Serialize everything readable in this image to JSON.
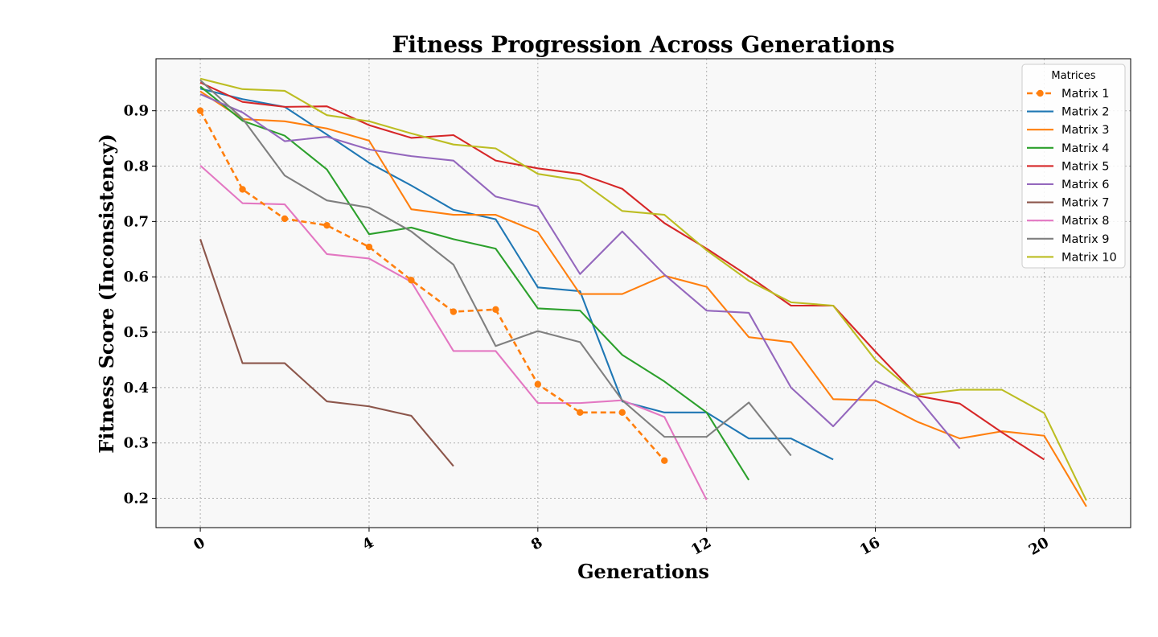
{
  "chart_data": {
    "type": "line",
    "title": "Fitness Progression Across Generations",
    "xlabel": "Generations",
    "ylabel": "Fitness Score (Inconsistency)",
    "xlim": [
      -1.05,
      22.05
    ],
    "ylim": [
      0.147,
      0.994
    ],
    "xticks": [
      0,
      4,
      8,
      12,
      16,
      20
    ],
    "yticks": [
      0.2,
      0.3,
      0.4,
      0.5,
      0.6,
      0.7,
      0.8,
      0.9
    ],
    "grid": true,
    "legend": {
      "title": "Matrices",
      "position": "top-right"
    },
    "series": [
      {
        "name": "Matrix 1",
        "color": "#ff7f0e",
        "style": "dashed-marker",
        "values": [
          0.9,
          0.758,
          0.705,
          0.693,
          0.654,
          0.594,
          0.537,
          0.541,
          0.406,
          0.355,
          0.355,
          0.268
        ]
      },
      {
        "name": "Matrix 2",
        "color": "#1f77b4",
        "style": "solid",
        "values": [
          0.94,
          0.921,
          0.907,
          0.857,
          0.806,
          0.765,
          0.721,
          0.704,
          0.581,
          0.574,
          0.375,
          0.355,
          0.355,
          0.308,
          0.308,
          0.27
        ]
      },
      {
        "name": "Matrix 3",
        "color": "#ff7f0e",
        "style": "solid",
        "values": [
          0.935,
          0.885,
          0.881,
          0.868,
          0.846,
          0.722,
          0.712,
          0.712,
          0.681,
          0.569,
          0.569,
          0.602,
          0.582,
          0.491,
          0.482,
          0.379,
          0.377,
          0.338,
          0.308,
          0.321,
          0.313,
          0.185
        ]
      },
      {
        "name": "Matrix 4",
        "color": "#2ca02c",
        "style": "solid",
        "values": [
          0.944,
          0.882,
          0.855,
          0.794,
          0.677,
          0.689,
          0.668,
          0.651,
          0.543,
          0.539,
          0.459,
          0.411,
          0.355,
          0.233
        ]
      },
      {
        "name": "Matrix 5",
        "color": "#d62728",
        "style": "solid",
        "values": [
          0.951,
          0.916,
          0.907,
          0.908,
          0.874,
          0.851,
          0.856,
          0.81,
          0.796,
          0.786,
          0.759,
          0.697,
          0.651,
          0.601,
          0.548,
          0.548,
          0.465,
          0.385,
          0.371,
          0.319,
          0.27
        ]
      },
      {
        "name": "Matrix 6",
        "color": "#9467bd",
        "style": "solid",
        "values": [
          0.93,
          0.897,
          0.845,
          0.853,
          0.83,
          0.818,
          0.81,
          0.745,
          0.727,
          0.605,
          0.682,
          0.604,
          0.539,
          0.535,
          0.4,
          0.33,
          0.412,
          0.382,
          0.29
        ]
      },
      {
        "name": "Matrix 7",
        "color": "#8c564b",
        "style": "solid",
        "values": [
          0.668,
          0.444,
          0.444,
          0.375,
          0.366,
          0.349,
          0.258
        ]
      },
      {
        "name": "Matrix 8",
        "color": "#e377c2",
        "style": "solid",
        "values": [
          0.801,
          0.733,
          0.731,
          0.641,
          0.633,
          0.591,
          0.466,
          0.466,
          0.372,
          0.372,
          0.377,
          0.347,
          0.197
        ]
      },
      {
        "name": "Matrix 9",
        "color": "#7f7f7f",
        "style": "solid",
        "values": [
          0.955,
          0.886,
          0.783,
          0.738,
          0.725,
          0.682,
          0.622,
          0.475,
          0.502,
          0.482,
          0.377,
          0.311,
          0.311,
          0.373,
          0.277
        ]
      },
      {
        "name": "Matrix 10",
        "color": "#bcbd22",
        "style": "solid",
        "values": [
          0.958,
          0.939,
          0.936,
          0.892,
          0.881,
          0.859,
          0.839,
          0.832,
          0.786,
          0.774,
          0.719,
          0.712,
          0.648,
          0.593,
          0.554,
          0.548,
          0.45,
          0.387,
          0.396,
          0.396,
          0.354,
          0.196
        ]
      }
    ]
  }
}
